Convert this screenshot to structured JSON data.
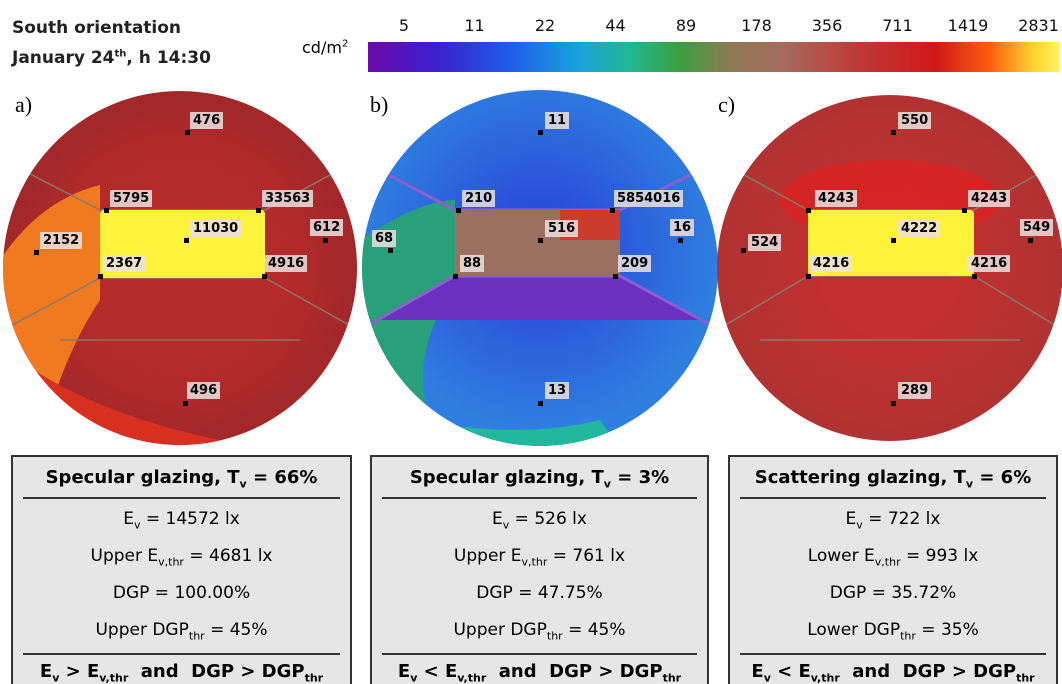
{
  "header": {
    "title": "South orientation",
    "date": [
      {
        "text": "January 24"
      },
      {
        "sup": "th"
      },
      {
        "text": ", h 14:30"
      }
    ]
  },
  "colorbar": {
    "unit": [
      {
        "text": "cd/m"
      },
      {
        "sup": "2"
      }
    ],
    "ticks": [
      5,
      11,
      22,
      44,
      89,
      178,
      356,
      711,
      1419,
      2831
    ]
  },
  "panels": [
    {
      "label": "a)",
      "points": [
        476,
        5795,
        33563,
        11030,
        612,
        2152,
        2367,
        4916,
        496
      ],
      "table": {
        "title": [
          {
            "text": "Specular glazing, T"
          },
          {
            "sub": "v"
          },
          {
            "text": " = 66%"
          }
        ],
        "rows": [
          [
            {
              "text": "E"
            },
            {
              "sub": "v"
            },
            {
              "text": " = 14572 lx"
            }
          ],
          [
            {
              "text": "Upper E"
            },
            {
              "sub": "v,thr"
            },
            {
              "text": " = 4681 lx"
            }
          ],
          [
            {
              "text": "DGP = 100.00%"
            }
          ],
          [
            {
              "text": "Upper DGP"
            },
            {
              "sub": "thr"
            },
            {
              "text": " = 45%"
            }
          ]
        ],
        "conclusion": [
          {
            "text": "E"
          },
          {
            "sub": "v"
          },
          {
            "text": " > E"
          },
          {
            "sub": "v,thr"
          },
          {
            "text": "  and  DGP > DGP"
          },
          {
            "sub": "thr"
          }
        ]
      }
    },
    {
      "label": "b)",
      "points": [
        11,
        210,
        5854016,
        516,
        16,
        68,
        88,
        209,
        13
      ],
      "table": {
        "title": [
          {
            "text": "Specular glazing, T"
          },
          {
            "sub": "v"
          },
          {
            "text": " = 3%"
          }
        ],
        "rows": [
          [
            {
              "text": "E"
            },
            {
              "sub": "v"
            },
            {
              "text": " = 526 lx"
            }
          ],
          [
            {
              "text": "Upper E"
            },
            {
              "sub": "v,thr"
            },
            {
              "text": " = 761 lx"
            }
          ],
          [
            {
              "text": "DGP = 47.75%"
            }
          ],
          [
            {
              "text": "Upper DGP"
            },
            {
              "sub": "thr"
            },
            {
              "text": " = 45%"
            }
          ]
        ],
        "conclusion": [
          {
            "text": "E"
          },
          {
            "sub": "v"
          },
          {
            "text": " < E"
          },
          {
            "sub": "v,thr"
          },
          {
            "text": "  and  DGP > DGP"
          },
          {
            "sub": "thr"
          }
        ]
      }
    },
    {
      "label": "c)",
      "points": [
        550,
        4243,
        4243,
        4222,
        549,
        524,
        4216,
        4216,
        289
      ],
      "table": {
        "title": [
          {
            "text": "Scattering glazing, T"
          },
          {
            "sub": "v"
          },
          {
            "text": " = 6%"
          }
        ],
        "rows": [
          [
            {
              "text": "E"
            },
            {
              "sub": "v"
            },
            {
              "text": " = 722 lx"
            }
          ],
          [
            {
              "text": "Lower E"
            },
            {
              "sub": "v,thr"
            },
            {
              "text": " = 993 lx"
            }
          ],
          [
            {
              "text": "DGP = 35.72%"
            }
          ],
          [
            {
              "text": "Lower DGP"
            },
            {
              "sub": "thr"
            },
            {
              "text": " = 35%"
            }
          ]
        ],
        "conclusion": [
          {
            "text": "E"
          },
          {
            "sub": "v"
          },
          {
            "text": " < E"
          },
          {
            "sub": "v,thr"
          },
          {
            "text": "  and  DGP > DGP"
          },
          {
            "sub": "thr"
          }
        ]
      }
    }
  ]
}
